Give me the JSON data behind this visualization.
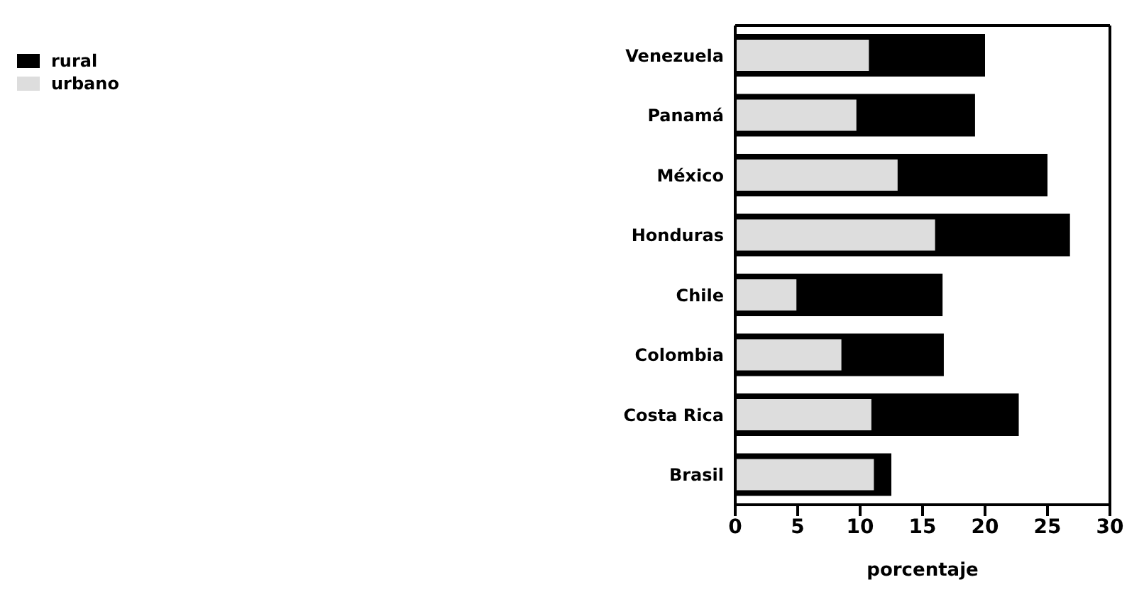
{
  "chart_data": {
    "type": "bar",
    "orientation": "horizontal",
    "xlabel": "porcentaje",
    "categories": [
      "Venezuela",
      "Panamá",
      "México",
      "Honduras",
      "Chile",
      "Colombia",
      "Costa Rica",
      "Brasil"
    ],
    "series": [
      {
        "name": "rural",
        "color": "#000000",
        "values": [
          20,
          19.2,
          25,
          26.8,
          16.6,
          16.7,
          22.7,
          12.5
        ]
      },
      {
        "name": "urbano",
        "color": "#dddddd",
        "values": [
          10.7,
          9.7,
          13,
          16,
          4.9,
          8.5,
          10.9,
          11.1
        ]
      }
    ],
    "xlim": [
      0,
      30
    ],
    "xticks": [
      0,
      5,
      10,
      15,
      20,
      25,
      30
    ],
    "legend": "top left"
  }
}
